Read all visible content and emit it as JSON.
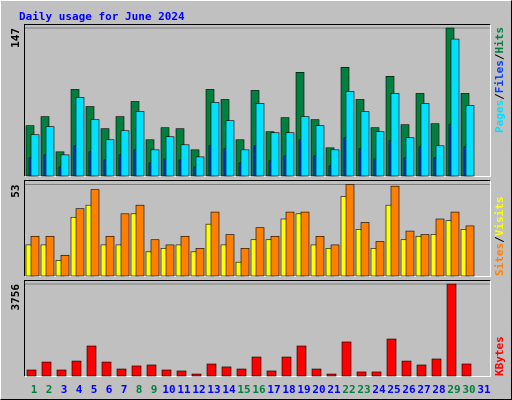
{
  "chart_data": [
    {
      "type": "bar",
      "title": "Daily usage for June 2024",
      "legend_separator": "/",
      "ylim": [
        0,
        150
      ],
      "yticks": [
        147
      ],
      "series": [
        {
          "name": "Hits",
          "color": "#008040",
          "values": [
            50,
            59,
            24,
            86,
            69,
            47,
            59,
            74,
            36,
            48,
            47,
            26,
            86,
            76,
            36,
            85,
            44,
            58,
            103,
            56,
            28,
            108,
            76,
            48,
            99,
            51,
            82,
            52,
            147,
            82,
            0
          ]
        },
        {
          "name": "Files",
          "color": "#0040FF",
          "values": [
            18,
            21,
            9,
            30,
            24,
            16,
            21,
            26,
            13,
            17,
            16,
            9,
            30,
            27,
            13,
            30,
            15,
            20,
            36,
            20,
            10,
            38,
            27,
            17,
            35,
            18,
            29,
            18,
            51,
            29,
            0
          ]
        },
        {
          "name": "Pages",
          "color": "#00E0FF",
          "values": [
            41,
            49,
            21,
            78,
            56,
            36,
            45,
            64,
            26,
            39,
            31,
            19,
            73,
            55,
            26,
            72,
            43,
            43,
            59,
            50,
            26,
            84,
            64,
            44,
            82,
            38,
            72,
            30,
            136,
            70,
            0
          ]
        }
      ]
    },
    {
      "type": "bar",
      "legend_separator": "/",
      "ylim": [
        0,
        55
      ],
      "yticks": [
        53
      ],
      "series": [
        {
          "name": "Visits",
          "color": "#FFFF00",
          "values": [
            18,
            18,
            9,
            34,
            41,
            18,
            18,
            36,
            14,
            16,
            18,
            14,
            30,
            18,
            8,
            21,
            21,
            33,
            36,
            18,
            16,
            46,
            27,
            16,
            41,
            21,
            23,
            24,
            32,
            27,
            0
          ]
        },
        {
          "name": "Sites",
          "color": "#FF8000",
          "values": [
            23,
            23,
            12,
            39,
            50,
            23,
            36,
            41,
            21,
            18,
            23,
            16,
            37,
            24,
            16,
            28,
            23,
            37,
            37,
            23,
            18,
            53,
            31,
            20,
            52,
            26,
            24,
            33,
            37,
            29,
            0
          ]
        }
      ]
    },
    {
      "type": "bar",
      "ylim": [
        0,
        3880
      ],
      "yticks": [
        3756
      ],
      "categories": [
        "1",
        "2",
        "3",
        "4",
        "5",
        "6",
        "7",
        "8",
        "9",
        "10",
        "11",
        "12",
        "13",
        "14",
        "15",
        "16",
        "17",
        "18",
        "19",
        "20",
        "21",
        "22",
        "23",
        "24",
        "25",
        "26",
        "27",
        "28",
        "29",
        "30",
        "31"
      ],
      "label_colors": [
        "#008040",
        "#008040",
        "#0000FF",
        "#0000FF",
        "#0000FF",
        "#0000FF",
        "#0000FF",
        "#008040",
        "#008040",
        "#0000FF",
        "#0000FF",
        "#0000FF",
        "#0000FF",
        "#0000FF",
        "#008040",
        "#008040",
        "#0000FF",
        "#0000FF",
        "#0000FF",
        "#0000FF",
        "#0000FF",
        "#008040",
        "#008040",
        "#0000FF",
        "#0000FF",
        "#0000FF",
        "#0000FF",
        "#0000FF",
        "#008040",
        "#008040",
        "#0000FF"
      ],
      "series": [
        {
          "name": "KBytes",
          "color": "#FF0000",
          "values": [
            245,
            570,
            245,
            610,
            1225,
            570,
            285,
            410,
            450,
            245,
            205,
            80,
            490,
            370,
            285,
            775,
            205,
            775,
            1225,
            285,
            80,
            1390,
            165,
            165,
            1510,
            610,
            450,
            695,
            3756,
            490,
            0
          ]
        }
      ]
    }
  ]
}
